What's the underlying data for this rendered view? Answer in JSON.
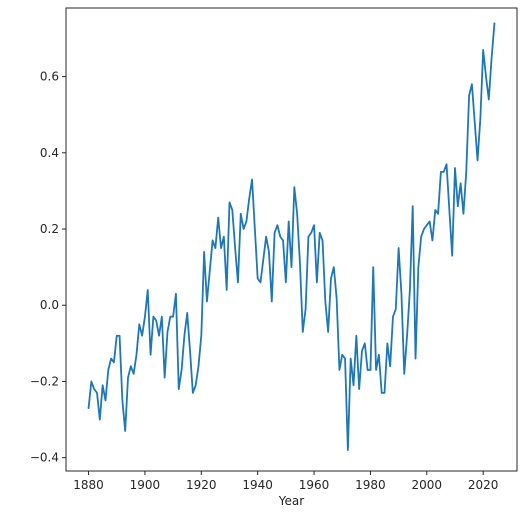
{
  "chart_data": {
    "type": "line",
    "title": "",
    "xlabel": "Year",
    "ylabel": "",
    "xlim": [
      1872,
      2032
    ],
    "ylim": [
      -0.435,
      0.78
    ],
    "xticks": [
      1880,
      1900,
      1920,
      1940,
      1960,
      1980,
      2000,
      2020
    ],
    "yticks": [
      -0.4,
      -0.2,
      0.0,
      0.2,
      0.4,
      0.6
    ],
    "ytick_labels": [
      "−0.4",
      "−0.2",
      "0.0",
      "0.2",
      "0.4",
      "0.6"
    ],
    "grid": false,
    "line_color": "#1f77b4",
    "series": [
      {
        "x": [
          1880,
          1881,
          1882,
          1883,
          1884,
          1885,
          1886,
          1887,
          1888,
          1889,
          1890,
          1891,
          1892,
          1893,
          1894,
          1895,
          1896,
          1897,
          1898,
          1899,
          1900,
          1901,
          1902,
          1903,
          1904,
          1905,
          1906,
          1907,
          1908,
          1909,
          1910,
          1911,
          1912,
          1913,
          1914,
          1915,
          1916,
          1917,
          1918,
          1919,
          1920,
          1921,
          1922,
          1923,
          1924,
          1925,
          1926,
          1927,
          1928,
          1929,
          1930,
          1931,
          1932,
          1933,
          1934,
          1935,
          1936,
          1937,
          1938,
          1939,
          1940,
          1941,
          1942,
          1943,
          1944,
          1945,
          1946,
          1947,
          1948,
          1949,
          1950,
          1951,
          1952,
          1953,
          1954,
          1955,
          1956,
          1957,
          1958,
          1959,
          1960,
          1961,
          1962,
          1963,
          1964,
          1965,
          1966,
          1967,
          1968,
          1969,
          1970,
          1971,
          1972,
          1973,
          1974,
          1975,
          1976,
          1977,
          1978,
          1979,
          1980,
          1981,
          1982,
          1983,
          1984,
          1985,
          1986,
          1987,
          1988,
          1989,
          1990,
          1991,
          1992,
          1993,
          1994,
          1995,
          1996,
          1997,
          1998,
          1999,
          2000,
          2001,
          2002,
          2003,
          2004,
          2005,
          2006,
          2007,
          2008,
          2009,
          2010,
          2011,
          2012,
          2013,
          2014,
          2015,
          2016,
          2017,
          2018,
          2019,
          2020,
          2021,
          2022,
          2023,
          2024
        ],
        "values": [
          -0.27,
          -0.2,
          -0.22,
          -0.23,
          -0.3,
          -0.21,
          -0.25,
          -0.17,
          -0.14,
          -0.15,
          -0.08,
          -0.08,
          -0.25,
          -0.33,
          -0.19,
          -0.16,
          -0.18,
          -0.13,
          -0.05,
          -0.08,
          -0.03,
          0.04,
          -0.13,
          -0.03,
          -0.04,
          -0.08,
          -0.03,
          -0.19,
          -0.07,
          -0.03,
          -0.03,
          0.03,
          -0.22,
          -0.17,
          -0.08,
          -0.02,
          -0.12,
          -0.23,
          -0.21,
          -0.16,
          -0.08,
          0.14,
          0.01,
          0.09,
          0.17,
          0.15,
          0.23,
          0.15,
          0.18,
          0.04,
          0.27,
          0.25,
          0.15,
          0.06,
          0.24,
          0.2,
          0.22,
          0.28,
          0.33,
          0.2,
          0.07,
          0.06,
          0.12,
          0.18,
          0.14,
          0.01,
          0.19,
          0.21,
          0.18,
          0.17,
          0.06,
          0.22,
          0.1,
          0.31,
          0.24,
          0.11,
          -0.07,
          -0.01,
          0.18,
          0.19,
          0.21,
          0.06,
          0.19,
          0.17,
          0.01,
          -0.07,
          0.07,
          0.1,
          0.02,
          -0.17,
          -0.13,
          -0.14,
          -0.38,
          -0.14,
          -0.21,
          -0.08,
          -0.22,
          -0.12,
          -0.1,
          -0.17,
          -0.17,
          0.1,
          -0.17,
          -0.13,
          -0.23,
          -0.23,
          -0.1,
          -0.16,
          -0.03,
          -0.01,
          0.15,
          0.03,
          -0.18,
          -0.08,
          0.04,
          0.26,
          -0.14,
          0.1,
          0.18,
          0.2,
          0.21,
          0.22,
          0.17,
          0.25,
          0.24,
          0.35,
          0.35,
          0.37,
          0.25,
          0.13,
          0.36,
          0.26,
          0.32,
          0.24,
          0.35,
          0.55,
          0.58,
          0.48,
          0.38,
          0.49,
          0.67,
          0.6,
          0.54,
          0.65,
          0.74
        ]
      }
    ]
  }
}
